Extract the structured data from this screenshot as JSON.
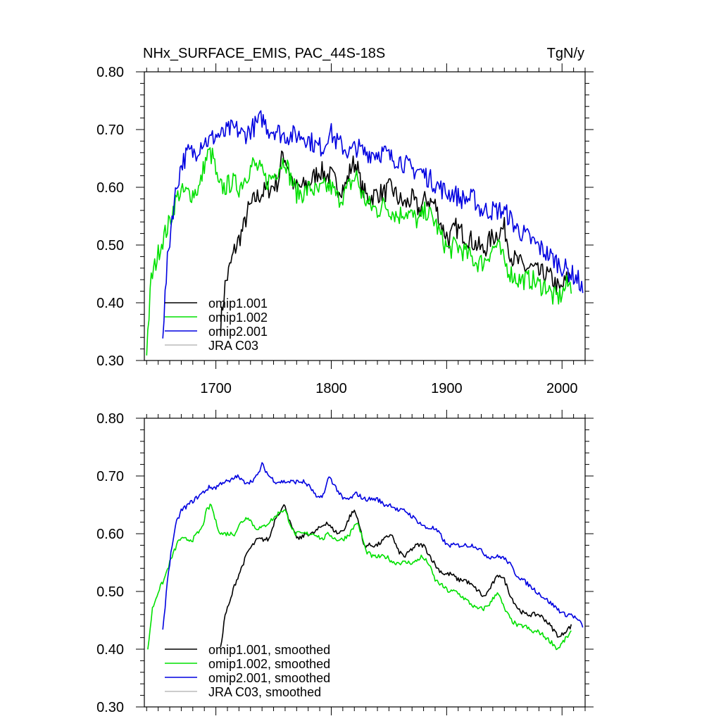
{
  "colors": {
    "axis": "#000000",
    "omip1_001": "#000000",
    "omip1_002": "#00e000",
    "omip2_001": "#0000e0",
    "jra_c03": "#bbbbbb"
  },
  "chart_data": [
    {
      "type": "line",
      "title_left": "NHx_SURFACE_EMIS, PAC_44S-18S",
      "title_right": "TgN/y",
      "xlim": [
        1638,
        2020
      ],
      "ylim": [
        0.3,
        0.8
      ],
      "xticks": [
        1700,
        1800,
        1900,
        2000
      ],
      "xtick_labels": [
        "1700",
        "1800",
        "1900",
        "2000"
      ],
      "yticks": [
        0.3,
        0.4,
        0.5,
        0.6,
        0.7,
        0.8
      ],
      "ytick_labels": [
        "0.30",
        "0.40",
        "0.50",
        "0.60",
        "0.70",
        "0.80"
      ],
      "legend_position": "bottom-left",
      "noise": 0.018,
      "series": [
        {
          "name": "omip1.001",
          "color_key": "omip1_001",
          "x": [
            1704,
            1708,
            1712,
            1716,
            1720,
            1724,
            1728,
            1734,
            1740,
            1748,
            1754,
            1758,
            1762,
            1768,
            1775,
            1782,
            1790,
            1796,
            1800,
            1806,
            1812,
            1818,
            1822,
            1826,
            1832,
            1840,
            1846,
            1852,
            1858,
            1864,
            1870,
            1876,
            1882,
            1890,
            1896,
            1902,
            1908,
            1914,
            1920,
            1926,
            1932,
            1938,
            1944,
            1950,
            1956,
            1962,
            1968,
            1974,
            1980,
            1986,
            1992,
            1998,
            2004,
            2008
          ],
          "y": [
            0.36,
            0.43,
            0.46,
            0.49,
            0.51,
            0.53,
            0.56,
            0.58,
            0.59,
            0.6,
            0.61,
            0.66,
            0.64,
            0.6,
            0.6,
            0.61,
            0.63,
            0.62,
            0.62,
            0.6,
            0.6,
            0.64,
            0.64,
            0.6,
            0.58,
            0.59,
            0.59,
            0.6,
            0.58,
            0.57,
            0.58,
            0.56,
            0.58,
            0.57,
            0.53,
            0.51,
            0.53,
            0.52,
            0.51,
            0.5,
            0.49,
            0.51,
            0.52,
            0.53,
            0.48,
            0.47,
            0.46,
            0.46,
            0.45,
            0.45,
            0.44,
            0.42,
            0.44,
            0.45
          ]
        },
        {
          "name": "omip1.002",
          "color_key": "omip1_002",
          "x": [
            1640,
            1644,
            1648,
            1652,
            1656,
            1660,
            1664,
            1668,
            1674,
            1680,
            1686,
            1690,
            1694,
            1698,
            1702,
            1708,
            1714,
            1720,
            1726,
            1732,
            1738,
            1744,
            1750,
            1756,
            1760,
            1764,
            1770,
            1776,
            1782,
            1788,
            1794,
            1800,
            1806,
            1812,
            1818,
            1822,
            1826,
            1832,
            1840,
            1846,
            1852,
            1858,
            1864,
            1870,
            1876,
            1882,
            1890,
            1896,
            1902,
            1908,
            1914,
            1920,
            1926,
            1932,
            1938,
            1944,
            1950,
            1956,
            1962,
            1968,
            1974,
            1980,
            1986,
            1992,
            1998,
            2004,
            2008
          ],
          "y": [
            0.32,
            0.44,
            0.47,
            0.5,
            0.52,
            0.54,
            0.57,
            0.59,
            0.59,
            0.59,
            0.6,
            0.64,
            0.66,
            0.65,
            0.6,
            0.6,
            0.61,
            0.6,
            0.62,
            0.64,
            0.63,
            0.61,
            0.62,
            0.64,
            0.65,
            0.62,
            0.59,
            0.59,
            0.6,
            0.59,
            0.6,
            0.6,
            0.58,
            0.59,
            0.61,
            0.62,
            0.59,
            0.57,
            0.56,
            0.57,
            0.56,
            0.55,
            0.56,
            0.55,
            0.54,
            0.56,
            0.54,
            0.51,
            0.49,
            0.5,
            0.49,
            0.48,
            0.47,
            0.47,
            0.49,
            0.5,
            0.47,
            0.45,
            0.44,
            0.44,
            0.44,
            0.43,
            0.43,
            0.41,
            0.41,
            0.43,
            0.43
          ]
        },
        {
          "name": "omip2.001",
          "color_key": "omip2_001",
          "x": [
            1654,
            1658,
            1662,
            1666,
            1670,
            1676,
            1682,
            1688,
            1694,
            1700,
            1706,
            1712,
            1718,
            1724,
            1730,
            1736,
            1740,
            1746,
            1752,
            1758,
            1764,
            1770,
            1776,
            1782,
            1788,
            1794,
            1798,
            1804,
            1810,
            1816,
            1822,
            1828,
            1834,
            1840,
            1846,
            1852,
            1858,
            1864,
            1870,
            1876,
            1882,
            1888,
            1894,
            1900,
            1906,
            1912,
            1918,
            1924,
            1930,
            1936,
            1942,
            1948,
            1954,
            1960,
            1966,
            1972,
            1978,
            1984,
            1990,
            1996,
            2002,
            2008,
            2014,
            2018
          ],
          "y": [
            0.35,
            0.47,
            0.55,
            0.6,
            0.64,
            0.66,
            0.66,
            0.68,
            0.68,
            0.69,
            0.69,
            0.7,
            0.7,
            0.69,
            0.7,
            0.71,
            0.72,
            0.7,
            0.7,
            0.69,
            0.69,
            0.69,
            0.69,
            0.68,
            0.67,
            0.67,
            0.7,
            0.68,
            0.67,
            0.66,
            0.67,
            0.66,
            0.66,
            0.66,
            0.66,
            0.65,
            0.65,
            0.64,
            0.63,
            0.63,
            0.62,
            0.61,
            0.6,
            0.59,
            0.59,
            0.58,
            0.58,
            0.58,
            0.56,
            0.56,
            0.56,
            0.56,
            0.55,
            0.53,
            0.52,
            0.51,
            0.5,
            0.49,
            0.48,
            0.47,
            0.46,
            0.45,
            0.44,
            0.42
          ]
        },
        {
          "name": "JRA C03",
          "color_key": "jra_c03",
          "x": [],
          "y": []
        }
      ]
    },
    {
      "type": "line",
      "xlim": [
        1638,
        2020
      ],
      "ylim": [
        0.3,
        0.8
      ],
      "xticks": [
        1700,
        1800,
        1900,
        2000
      ],
      "yticks": [
        0.3,
        0.4,
        0.5,
        0.6,
        0.7,
        0.8
      ],
      "ytick_labels": [
        "0.30",
        "0.40",
        "0.50",
        "0.60",
        "0.70",
        "0.80"
      ],
      "legend_position": "bottom-left",
      "noise": 0.004,
      "series": [
        {
          "name": "omip1.001, smoothed",
          "color_key": "omip1_001",
          "x": [
            1704,
            1708,
            1712,
            1716,
            1720,
            1724,
            1728,
            1732,
            1736,
            1740,
            1746,
            1752,
            1756,
            1760,
            1764,
            1768,
            1772,
            1778,
            1784,
            1790,
            1796,
            1800,
            1806,
            1812,
            1816,
            1820,
            1824,
            1828,
            1834,
            1840,
            1846,
            1852,
            1858,
            1864,
            1868,
            1874,
            1880,
            1886,
            1892,
            1898,
            1904,
            1910,
            1916,
            1922,
            1928,
            1932,
            1936,
            1942,
            1946,
            1950,
            1956,
            1962,
            1968,
            1974,
            1980,
            1986,
            1990,
            1994,
            1998,
            2002,
            2008
          ],
          "y": [
            0.4,
            0.46,
            0.48,
            0.51,
            0.53,
            0.55,
            0.57,
            0.58,
            0.59,
            0.59,
            0.59,
            0.63,
            0.64,
            0.65,
            0.62,
            0.6,
            0.59,
            0.6,
            0.6,
            0.61,
            0.62,
            0.61,
            0.6,
            0.61,
            0.63,
            0.64,
            0.62,
            0.58,
            0.58,
            0.58,
            0.59,
            0.6,
            0.57,
            0.56,
            0.57,
            0.58,
            0.58,
            0.56,
            0.54,
            0.53,
            0.53,
            0.52,
            0.52,
            0.51,
            0.5,
            0.49,
            0.5,
            0.52,
            0.53,
            0.52,
            0.49,
            0.47,
            0.46,
            0.46,
            0.46,
            0.45,
            0.44,
            0.43,
            0.42,
            0.43,
            0.44
          ]
        },
        {
          "name": "omip1.002, smoothed",
          "color_key": "omip1_002",
          "x": [
            1641,
            1645,
            1650,
            1655,
            1660,
            1664,
            1668,
            1672,
            1676,
            1680,
            1684,
            1688,
            1692,
            1696,
            1700,
            1704,
            1710,
            1716,
            1722,
            1728,
            1734,
            1740,
            1746,
            1752,
            1756,
            1760,
            1764,
            1768,
            1774,
            1780,
            1786,
            1792,
            1798,
            1804,
            1810,
            1816,
            1822,
            1826,
            1830,
            1836,
            1842,
            1848,
            1854,
            1860,
            1866,
            1872,
            1878,
            1884,
            1890,
            1896,
            1902,
            1908,
            1914,
            1920,
            1926,
            1932,
            1938,
            1944,
            1950,
            1956,
            1962,
            1968,
            1974,
            1980,
            1986,
            1992,
            1996,
            2000,
            2004,
            2008
          ],
          "y": [
            0.4,
            0.47,
            0.5,
            0.52,
            0.55,
            0.57,
            0.59,
            0.59,
            0.59,
            0.59,
            0.6,
            0.61,
            0.64,
            0.65,
            0.62,
            0.6,
            0.6,
            0.6,
            0.62,
            0.63,
            0.61,
            0.61,
            0.62,
            0.63,
            0.64,
            0.64,
            0.62,
            0.6,
            0.6,
            0.6,
            0.6,
            0.59,
            0.6,
            0.59,
            0.59,
            0.6,
            0.62,
            0.6,
            0.57,
            0.56,
            0.56,
            0.56,
            0.55,
            0.55,
            0.55,
            0.55,
            0.56,
            0.55,
            0.52,
            0.51,
            0.5,
            0.5,
            0.49,
            0.48,
            0.47,
            0.47,
            0.48,
            0.5,
            0.47,
            0.45,
            0.44,
            0.44,
            0.43,
            0.43,
            0.42,
            0.41,
            0.4,
            0.41,
            0.42,
            0.43
          ]
        },
        {
          "name": "omip2.001, smoothed",
          "color_key": "omip2_001",
          "x": [
            1654,
            1658,
            1662,
            1666,
            1670,
            1676,
            1682,
            1688,
            1694,
            1700,
            1706,
            1712,
            1718,
            1724,
            1730,
            1736,
            1740,
            1746,
            1752,
            1758,
            1764,
            1770,
            1776,
            1782,
            1788,
            1794,
            1798,
            1804,
            1810,
            1816,
            1822,
            1828,
            1834,
            1840,
            1846,
            1852,
            1858,
            1864,
            1870,
            1876,
            1882,
            1888,
            1894,
            1900,
            1906,
            1912,
            1918,
            1924,
            1930,
            1936,
            1942,
            1948,
            1954,
            1960,
            1966,
            1972,
            1978,
            1984,
            1990,
            1996,
            2002,
            2008,
            2014,
            2018
          ],
          "y": [
            0.43,
            0.52,
            0.58,
            0.62,
            0.64,
            0.65,
            0.66,
            0.67,
            0.68,
            0.68,
            0.69,
            0.69,
            0.7,
            0.69,
            0.69,
            0.7,
            0.72,
            0.7,
            0.69,
            0.69,
            0.69,
            0.69,
            0.69,
            0.68,
            0.66,
            0.67,
            0.7,
            0.68,
            0.66,
            0.66,
            0.67,
            0.66,
            0.66,
            0.66,
            0.65,
            0.65,
            0.64,
            0.64,
            0.63,
            0.62,
            0.61,
            0.61,
            0.6,
            0.58,
            0.58,
            0.58,
            0.58,
            0.58,
            0.57,
            0.56,
            0.56,
            0.56,
            0.55,
            0.53,
            0.52,
            0.51,
            0.5,
            0.49,
            0.48,
            0.47,
            0.46,
            0.46,
            0.45,
            0.44
          ]
        },
        {
          "name": "JRA C03, smoothed",
          "color_key": "jra_c03",
          "x": [],
          "y": []
        }
      ]
    }
  ]
}
